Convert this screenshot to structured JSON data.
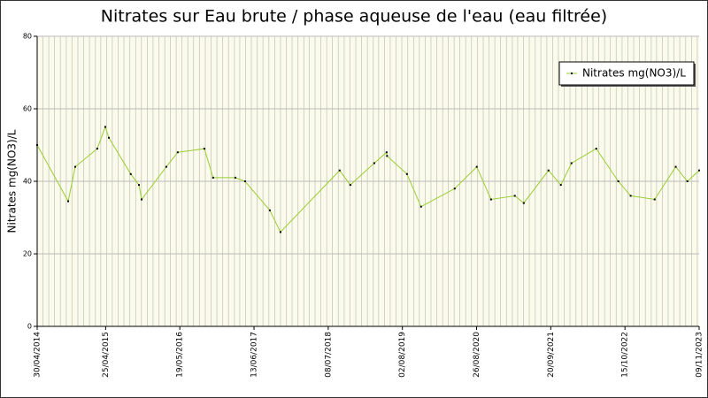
{
  "chart_data": {
    "type": "line",
    "title": "Nitrates sur Eau brute / phase aqueuse de l'eau (eau filtrée)",
    "y_label": "Nitrates mg(NO3)/L",
    "x": [
      "2014-04-30",
      "2014-10-10",
      "2014-11-16",
      "2015-03-12",
      "2015-04-23",
      "2015-05-12",
      "2015-09-04",
      "2015-10-17",
      "2015-10-31",
      "2016-03-09",
      "2016-05-08",
      "2016-09-25",
      "2016-11-10",
      "2017-03-07",
      "2017-04-27",
      "2017-09-04",
      "2017-10-30",
      "2018-09-06",
      "2018-11-01",
      "2019-03-07",
      "2019-05-11",
      "2019-05-13",
      "2019-08-26",
      "2019-11-08",
      "2020-05-03",
      "2020-08-27",
      "2020-11-10",
      "2021-03-15",
      "2021-05-01",
      "2021-09-08",
      "2021-11-12",
      "2022-01-07",
      "2022-05-17",
      "2022-09-10",
      "2022-11-14",
      "2023-03-20",
      "2023-07-09",
      "2023-09-08",
      "2023-11-09"
    ],
    "series": [
      {
        "name": "Nitrates mg(NO3)/L",
        "color": "#9acd32",
        "values": [
          50,
          34.5,
          44,
          49,
          55,
          52,
          42,
          39,
          35,
          44,
          48,
          49,
          41,
          41,
          40,
          32,
          26,
          43,
          39,
          45,
          48,
          47,
          42,
          33,
          38,
          44,
          35,
          36,
          34,
          43,
          39,
          45,
          49,
          40,
          36,
          35,
          44,
          40,
          43
        ]
      }
    ],
    "xlim": [
      "2014-04-30",
      "2023-11-09"
    ],
    "xticks": [
      {
        "value": "2014-04-30",
        "label": "30/04/2014"
      },
      {
        "value": "2015-04-25",
        "label": "25/04/2015"
      },
      {
        "value": "2016-05-19",
        "label": "19/05/2016"
      },
      {
        "value": "2017-06-13",
        "label": "13/06/2017"
      },
      {
        "value": "2018-07-08",
        "label": "08/07/2018"
      },
      {
        "value": "2019-08-02",
        "label": "02/08/2019"
      },
      {
        "value": "2020-08-26",
        "label": "26/08/2020"
      },
      {
        "value": "2021-09-20",
        "label": "20/09/2021"
      },
      {
        "value": "2022-10-15",
        "label": "15/10/2022"
      },
      {
        "value": "2023-11-09",
        "label": "09/11/2023"
      }
    ],
    "ylim": [
      0,
      80
    ],
    "yticks": [
      0,
      20,
      40,
      60,
      80
    ],
    "grid": true,
    "legend": "top-right"
  }
}
